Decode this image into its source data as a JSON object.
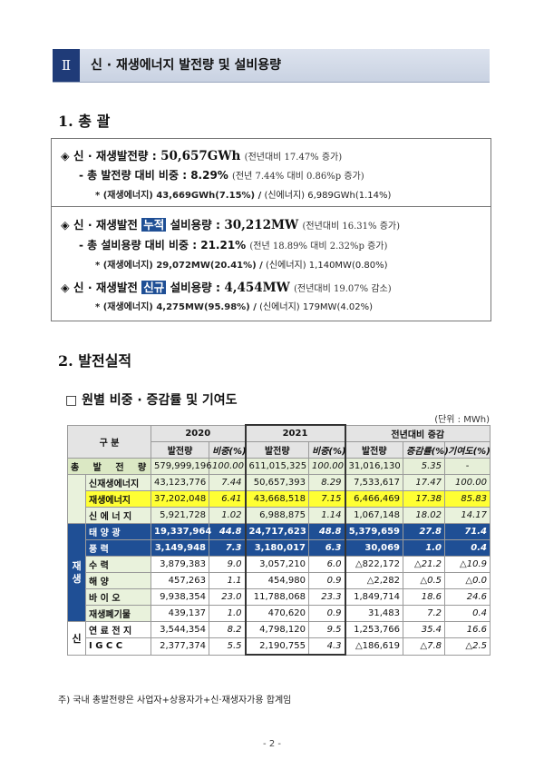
{
  "section": {
    "number": "Ⅱ",
    "title": "신 · 재생에너지 발전량 및 설비용량"
  },
  "h1": "1. 총 괄",
  "summary": {
    "gen_label": "◈ 신 · 재생발전량 :",
    "gen_value": "50,657GWh",
    "gen_note": "(전년대비 17.47% 증가)",
    "share_label": "- 총 발전량 대비 비중 :",
    "share_value": "8.29%",
    "share_note": "(전년 7.44% 대비 0.86%p 증가)",
    "share_detail_a": "* (재생에너지) 43,669GWh(7.15%) /",
    "share_detail_b": "(신에너지) 6,989GWh(1.14%)",
    "cum_label_a": "◈ 신 · 재생발전",
    "cum_tag": "누적",
    "cum_label_b": "설비용량 :",
    "cum_value": "30,212MW",
    "cum_note": "(전년대비 16.31% 증가)",
    "cum_share_label": "- 총 설비용량 대비 비중 :",
    "cum_share_value": "21.21%",
    "cum_share_note": "(전년 18.89% 대비 2.32%p 증가)",
    "cum_detail_a": "* (재생에너지) 29,072MW(20.41%) /",
    "cum_detail_b": "(신에너지) 1,140MW(0.80%)",
    "new_label_a": "◈ 신 · 재생발전",
    "new_tag": "신규",
    "new_label_b": "설비용량 :",
    "new_value": "4,454MW",
    "new_note": "(전년대비 19.07% 감소)",
    "new_detail_a": "* (재생에너지) 4,275MW(95.98%) /",
    "new_detail_b": "(신에너지) 179MW(4.02%)"
  },
  "h2": "2. 발전실적",
  "subtitle": "□ 원별 비중 · 증감률 및 기여도",
  "unit": "(단위 : MWh)",
  "table": {
    "corner": "구 분",
    "years": [
      "2020",
      "2021",
      "전년대비 증감"
    ],
    "cols": [
      "발전량",
      "비중(%)",
      "발전량",
      "비중(%)",
      "발전량",
      "증감률(%)",
      "기여도(%)"
    ],
    "total": {
      "label": "총 발 전 량",
      "v": [
        "579,999,196",
        "100.00",
        "611,015,325",
        "100.00",
        "31,016,130",
        "5.35",
        "-"
      ]
    },
    "newren": {
      "label": "신재생에너지",
      "v": [
        "43,123,776",
        "7.44",
        "50,657,393",
        "8.29",
        "7,533,617",
        "17.47",
        "100.00"
      ]
    },
    "renew": {
      "label": "재생에너지",
      "v": [
        "37,202,048",
        "6.41",
        "43,668,518",
        "7.15",
        "6,466,469",
        "17.38",
        "85.83"
      ]
    },
    "newe": {
      "label": "신 에 너 지",
      "v": [
        "5,921,728",
        "1.02",
        "6,988,875",
        "1.14",
        "1,067,148",
        "18.02",
        "14.17"
      ]
    },
    "group_renew": "재생",
    "group_new": "신",
    "rows_renew": [
      {
        "label": "태 양 광",
        "v": [
          "19,337,964",
          "44.8",
          "24,717,623",
          "48.8",
          "5,379,659",
          "27.8",
          "71.4"
        ]
      },
      {
        "label": "풍 력",
        "v": [
          "3,149,948",
          "7.3",
          "3,180,017",
          "6.3",
          "30,069",
          "1.0",
          "0.4"
        ]
      },
      {
        "label": "수 력",
        "v": [
          "3,879,383",
          "9.0",
          "3,057,210",
          "6.0",
          "△822,172",
          "△21.2",
          "△10.9"
        ]
      },
      {
        "label": "해 양",
        "v": [
          "457,263",
          "1.1",
          "454,980",
          "0.9",
          "△2,282",
          "△0.5",
          "△0.0"
        ]
      },
      {
        "label": "바 이 오",
        "v": [
          "9,938,354",
          "23.0",
          "11,788,068",
          "23.3",
          "1,849,714",
          "18.6",
          "24.6"
        ]
      },
      {
        "label": "재생폐기물",
        "v": [
          "439,137",
          "1.0",
          "470,620",
          "0.9",
          "31,483",
          "7.2",
          "0.4"
        ]
      }
    ],
    "rows_new": [
      {
        "label": "연 료 전 지",
        "v": [
          "3,544,354",
          "8.2",
          "4,798,120",
          "9.5",
          "1,253,766",
          "35.4",
          "16.6"
        ]
      },
      {
        "label": "I G C C",
        "v": [
          "2,377,374",
          "5.5",
          "2,190,755",
          "4.3",
          "△186,619",
          "△7.8",
          "△2.5"
        ]
      }
    ]
  },
  "footnote": "주) 국내 총발전량은 사업자+상용자가+신·재생자가용 합계임",
  "page": "- 2 -"
}
